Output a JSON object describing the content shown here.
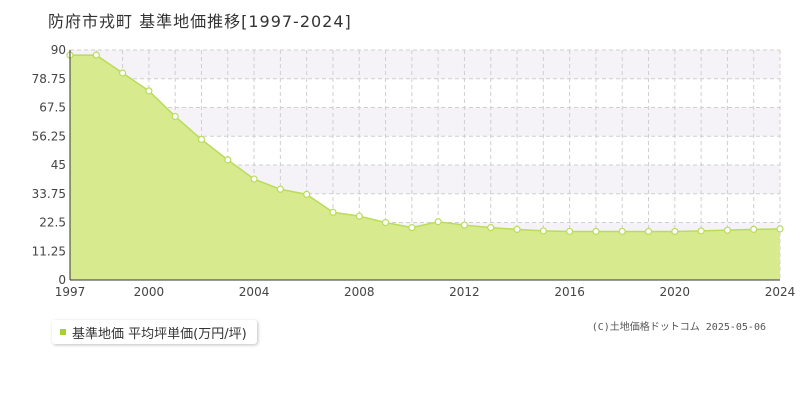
{
  "header": {
    "title": "防府市戎町 基準地価推移[1997-2024]"
  },
  "legend": {
    "label": "基準地価 平均坪単価(万円/坪)"
  },
  "footer": {
    "copyright": "(C)土地価格ドットコム 2025-05-06"
  },
  "colors": {
    "fill": "#d7eb8e",
    "line": "#b9dc5a",
    "marker_stroke": "#b9dc5a",
    "marker_fill": "#ffffff",
    "band": "#f5f3f7",
    "grid": "#cfcfcf",
    "legend_swatch": "#a8d036"
  },
  "chart_data": {
    "type": "area",
    "title": "防府市戎町 基準地価推移[1997-2024]",
    "xlabel": "",
    "ylabel": "",
    "x": [
      1997,
      1998,
      1999,
      2000,
      2001,
      2002,
      2003,
      2004,
      2005,
      2006,
      2007,
      2008,
      2009,
      2010,
      2011,
      2012,
      2013,
      2014,
      2015,
      2016,
      2017,
      2018,
      2019,
      2020,
      2021,
      2022,
      2023,
      2024
    ],
    "series": [
      {
        "name": "基準地価 平均坪単価(万円/坪)",
        "values": [
          88,
          88,
          81,
          74,
          64,
          55,
          47,
          39.5,
          35.5,
          33.5,
          26.5,
          25,
          22.5,
          20.5,
          22.8,
          21.5,
          20.5,
          19.8,
          19.2,
          19,
          19,
          19,
          19,
          19,
          19.2,
          19.5,
          19.8,
          20
        ]
      }
    ],
    "xlim": [
      1997,
      2024
    ],
    "ylim": [
      0,
      90
    ],
    "yticks": [
      "0",
      "11.25",
      "22.5",
      "33.75",
      "45",
      "56.25",
      "67.5",
      "78.75",
      "90"
    ],
    "xticks": [
      "1997",
      "2000",
      "2004",
      "2008",
      "2012",
      "2016",
      "2020",
      "2024"
    ],
    "grid": true,
    "legend_position": "bottom-left"
  }
}
